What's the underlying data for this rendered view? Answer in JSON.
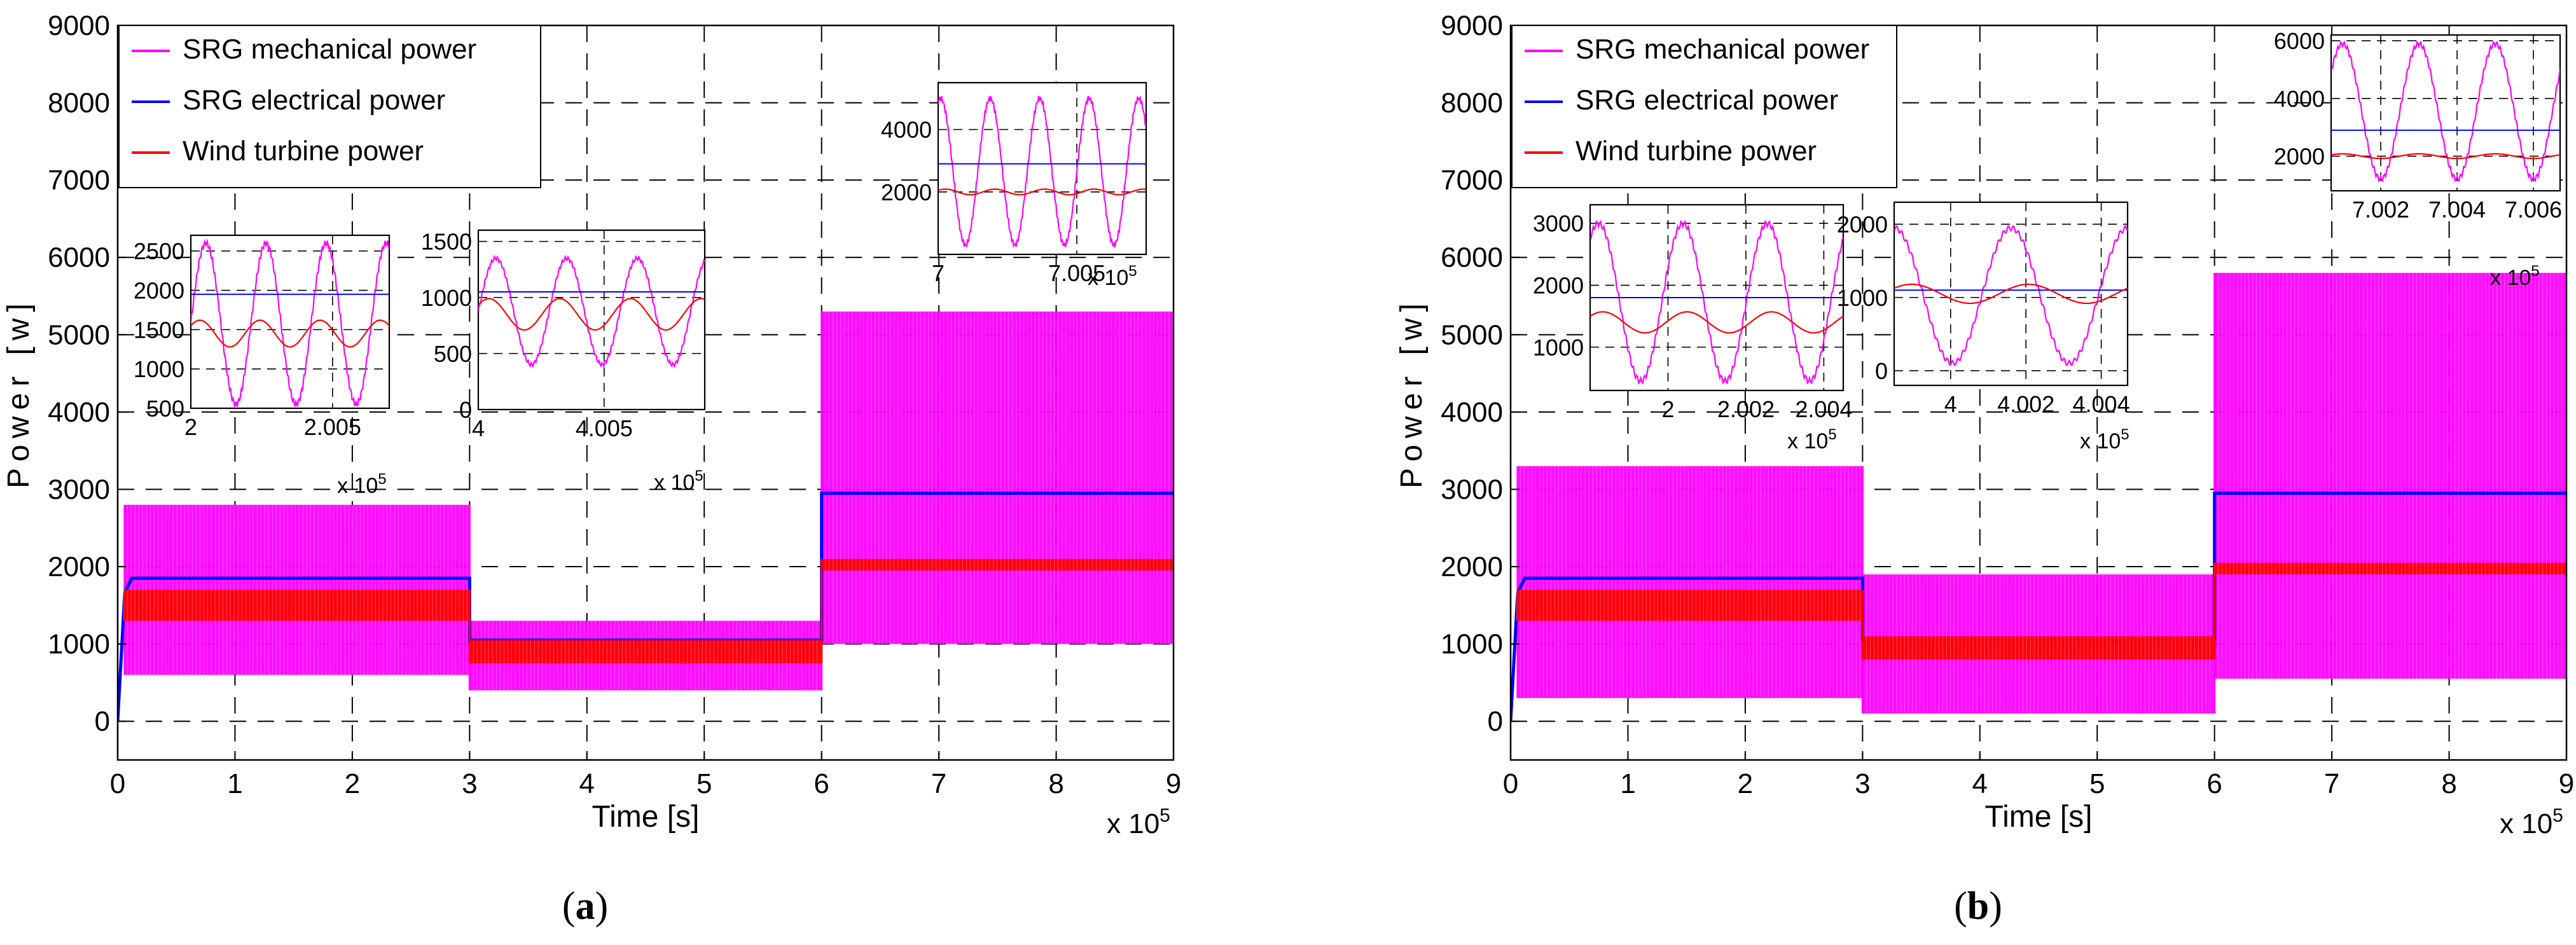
{
  "figure": {
    "panels": [
      {
        "letter": "a",
        "chart_data": {
          "type": "line",
          "title": "",
          "xlabel": "Time [s]",
          "ylabel": "Power [w]",
          "x_multiplier": "x 10",
          "x_exponent": "5",
          "xlim": [
            0,
            9
          ],
          "ylim": [
            -500,
            9000
          ],
          "xticks": [
            0,
            1,
            2,
            3,
            4,
            5,
            6,
            7,
            8,
            9
          ],
          "yticks": [
            0,
            1000,
            2000,
            3000,
            4000,
            5000,
            6000,
            7000,
            8000,
            9000
          ],
          "grid": true,
          "legend_position": "top-left",
          "series": [
            {
              "name": "SRG mechanical power",
              "color": "#ff00ff",
              "kind": "band",
              "segments": [
                {
                  "x0": 0.05,
                  "x1": 3,
                  "min": 600,
                  "max": 2800
                },
                {
                  "x0": 3,
                  "x1": 6,
                  "min": 400,
                  "max": 1300
                },
                {
                  "x0": 6,
                  "x1": 9,
                  "min": 1000,
                  "max": 5300
                }
              ]
            },
            {
              "name": "SRG electrical power",
              "color": "#0000ff",
              "kind": "level",
              "segments": [
                {
                  "x0": 0,
                  "x1": 3,
                  "value": 1850
                },
                {
                  "x0": 3,
                  "x1": 6,
                  "value": 1050
                },
                {
                  "x0": 6,
                  "x1": 9,
                  "value": 2950
                }
              ]
            },
            {
              "name": "Wind turbine power",
              "color": "#ff0000",
              "kind": "band",
              "segments": [
                {
                  "x0": 0.05,
                  "x1": 3,
                  "min": 1300,
                  "max": 1700
                },
                {
                  "x0": 3,
                  "x1": 6,
                  "min": 750,
                  "max": 1050
                },
                {
                  "x0": 6,
                  "x1": 9,
                  "min": 1950,
                  "max": 2100
                }
              ]
            }
          ],
          "insets": [
            {
              "xlim": [
                2,
                2.007
              ],
              "ylim": [
                500,
                2700
              ],
              "xticks": [
                "2",
                "2.005"
              ],
              "yticks": [
                "500",
                "1000",
                "1500",
                "2000",
                "2500"
              ],
              "x_multiplier": "x 10",
              "x_exponent": "5",
              "mech": {
                "min": 550,
                "max": 2600,
                "cycles": 3.3,
                "phase": 0.0
              },
              "elec": 1950,
              "wind": {
                "mid": 1450,
                "amp": 170,
                "cycles": 3.3
              }
            },
            {
              "xlim": [
                4,
                4.009
              ],
              "ylim": [
                0,
                1600
              ],
              "xticks": [
                "4",
                "4.005"
              ],
              "yticks": [
                "0",
                "500",
                "1000",
                "1500"
              ],
              "x_multiplier": "x 10",
              "x_exponent": "5",
              "mech": {
                "min": 400,
                "max": 1350,
                "cycles": 3.2,
                "phase": 0.0
              },
              "elec": 1050,
              "wind": {
                "mid": 850,
                "amp": 140,
                "cycles": 3.2
              }
            },
            {
              "xlim": [
                7,
                7.0075
              ],
              "ylim": [
                0,
                5500
              ],
              "xticks": [
                "7",
                "7.005"
              ],
              "yticks": [
                "2000",
                "4000"
              ],
              "x_multiplier": "x 10",
              "x_exponent": "5",
              "mech": {
                "min": 300,
                "max": 5000,
                "cycles": 4.2,
                "phase": 0.2
              },
              "elec": 2900,
              "wind": {
                "mid": 2000,
                "amp": 90,
                "cycles": 4.2
              }
            }
          ]
        }
      },
      {
        "letter": "b",
        "chart_data": {
          "type": "line",
          "title": "",
          "xlabel": "Time [s]",
          "ylabel": "Power [w]",
          "x_multiplier": "x 10",
          "x_exponent": "5",
          "xlim": [
            0,
            9
          ],
          "ylim": [
            -500,
            9000
          ],
          "xticks": [
            0,
            1,
            2,
            3,
            4,
            5,
            6,
            7,
            8,
            9
          ],
          "yticks": [
            0,
            1000,
            2000,
            3000,
            4000,
            5000,
            6000,
            7000,
            8000,
            9000
          ],
          "grid": true,
          "legend_position": "top-left",
          "series": [
            {
              "name": "SRG mechanical power",
              "color": "#ff00ff",
              "kind": "band",
              "segments": [
                {
                  "x0": 0.05,
                  "x1": 3,
                  "min": 300,
                  "max": 3300
                },
                {
                  "x0": 3,
                  "x1": 6,
                  "min": 100,
                  "max": 1900
                },
                {
                  "x0": 6,
                  "x1": 9,
                  "min": 550,
                  "max": 5800
                }
              ]
            },
            {
              "name": "SRG electrical power",
              "color": "#0000ff",
              "kind": "level",
              "segments": [
                {
                  "x0": 0,
                  "x1": 3,
                  "value": 1850
                },
                {
                  "x0": 3,
                  "x1": 6,
                  "value": 1050
                },
                {
                  "x0": 6,
                  "x1": 9,
                  "value": 2950
                }
              ]
            },
            {
              "name": "Wind turbine power",
              "color": "#ff0000",
              "kind": "band",
              "segments": [
                {
                  "x0": 0.05,
                  "x1": 3,
                  "min": 1300,
                  "max": 1700
                },
                {
                  "x0": 3,
                  "x1": 6,
                  "min": 800,
                  "max": 1100
                },
                {
                  "x0": 6,
                  "x1": 9,
                  "min": 1900,
                  "max": 2050
                }
              ]
            }
          ],
          "insets": [
            {
              "xlim": [
                1.998,
                2.0045
              ],
              "ylim": [
                300,
                3300
              ],
              "xticks": [
                "2",
                "2.002",
                "2.004"
              ],
              "yticks": [
                "1000",
                "2000",
                "3000"
              ],
              "x_multiplier": "x 10",
              "x_exponent": "5",
              "mech": {
                "min": 450,
                "max": 3000,
                "cycles": 3.0,
                "phase": 0.15
              },
              "elec": 1800,
              "wind": {
                "mid": 1400,
                "amp": 170,
                "cycles": 3.0
              }
            },
            {
              "xlim": [
                3.9985,
                4.0047
              ],
              "ylim": [
                -200,
                2300
              ],
              "xticks": [
                "4",
                "4.002",
                "4.004"
              ],
              "yticks": [
                "0",
                "1000",
                "2000"
              ],
              "x_multiplier": "x 10",
              "x_exponent": "5",
              "mech": {
                "min": 100,
                "max": 1950,
                "cycles": 2.0,
                "phase": 0.25
              },
              "elec": 1100,
              "wind": {
                "mid": 1050,
                "amp": 130,
                "cycles": 2.0
              }
            },
            {
              "xlim": [
                7.0007,
                7.0067
              ],
              "ylim": [
                800,
                6200
              ],
              "xticks": [
                "7.002",
                "7.004",
                "7.006"
              ],
              "yticks": [
                "2000",
                "4000",
                "6000"
              ],
              "x_multiplier": "x 10",
              "x_exponent": "5",
              "mech": {
                "min": 1200,
                "max": 5900,
                "cycles": 3.0,
                "phase": 0.1
              },
              "elec": 2900,
              "wind": {
                "mid": 2000,
                "amp": 80,
                "cycles": 3.0
              }
            }
          ]
        }
      }
    ]
  }
}
